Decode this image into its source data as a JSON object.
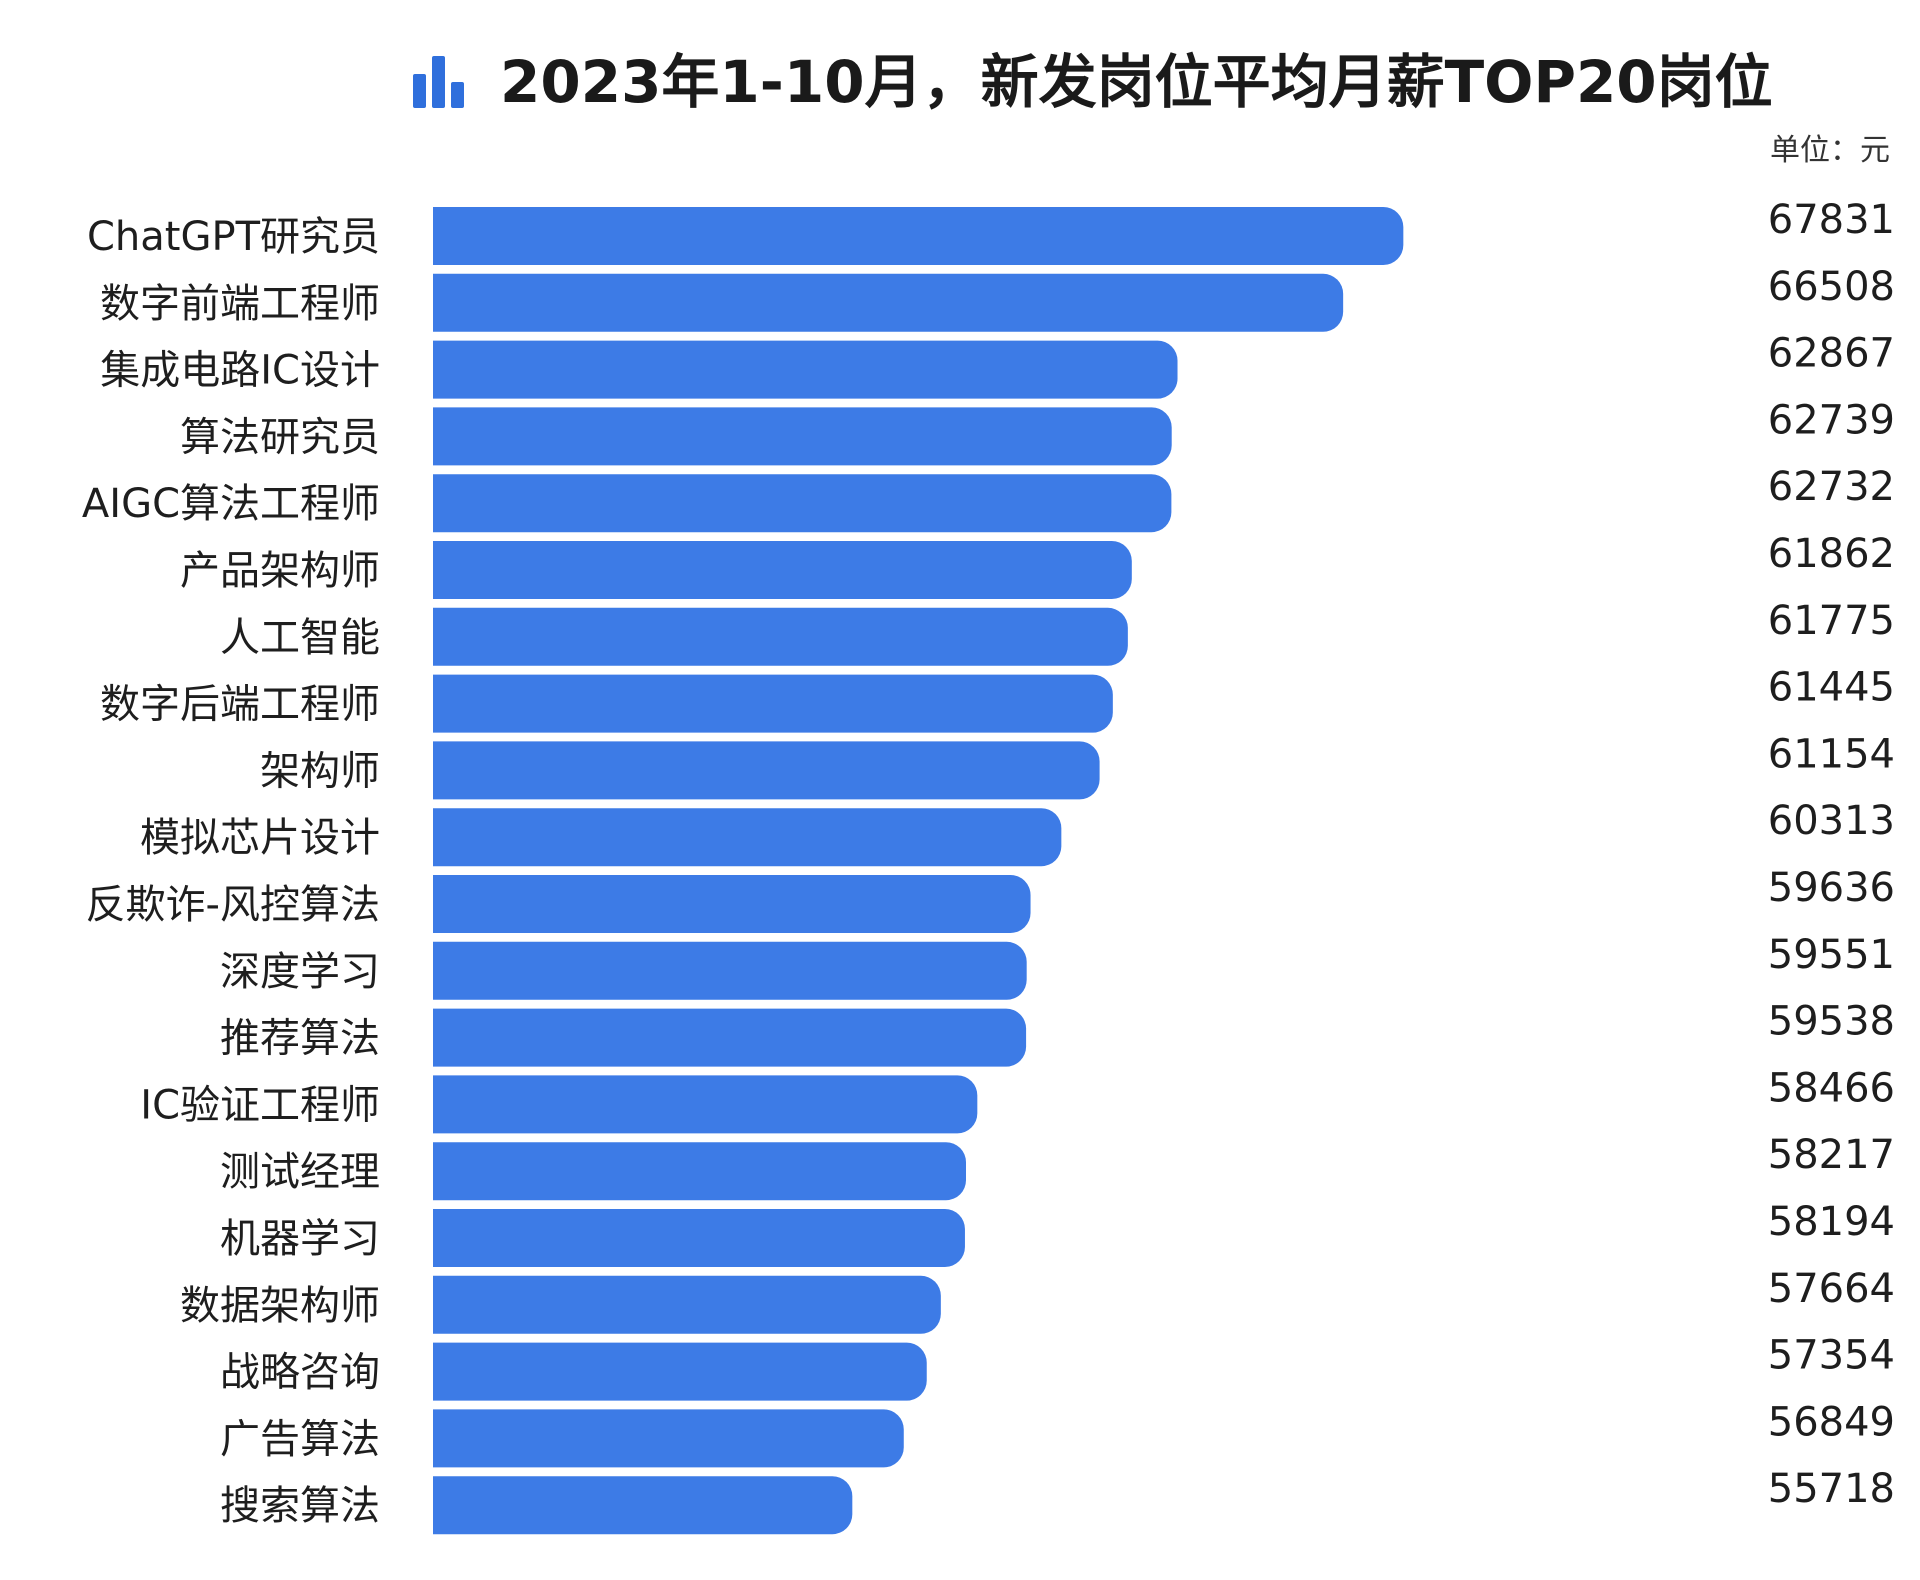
{
  "chart_data": {
    "type": "bar",
    "orientation": "horizontal",
    "title": "2023年1-10月，新发岗位平均月薪TOP20岗位",
    "unit_label": "单位：元",
    "categories": [
      "ChatGPT研究员",
      "数字前端工程师",
      "集成电路IC设计",
      "算法研究员",
      "AIGC算法工程师",
      "产品架构师",
      "人工智能",
      "数字后端工程师",
      "架构师",
      "模拟芯片设计",
      "反欺诈-风控算法",
      "深度学习",
      "推荐算法",
      "IC验证工程师",
      "测试经理",
      "机器学习",
      "数据架构师",
      "战略咨询",
      "广告算法",
      "搜索算法"
    ],
    "values": [
      67831,
      66508,
      62867,
      62739,
      62732,
      61862,
      61775,
      61445,
      61154,
      60313,
      59636,
      59551,
      59538,
      58466,
      58217,
      58194,
      57664,
      57354,
      56849,
      55718
    ],
    "xlim": [
      46500,
      70000
    ],
    "grid": false,
    "legend": "none",
    "bar_color": "#3d7be6",
    "title_color": "#1a1a1a",
    "title_icon": "bar-chart-icon",
    "title_icon_color": "#2f6fdc"
  }
}
